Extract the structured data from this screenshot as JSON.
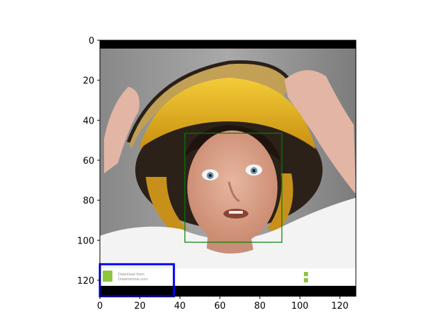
{
  "axes": {
    "x_ticks": [
      0,
      20,
      40,
      60,
      80,
      100,
      120
    ],
    "y_ticks": [
      0,
      20,
      40,
      60,
      80,
      100,
      120
    ],
    "x_range": [
      0,
      128
    ],
    "y_range": [
      128,
      0
    ]
  },
  "image": {
    "description_tags": [
      "child",
      "yellow-helmet",
      "white-shirt",
      "gray-background"
    ],
    "banner_text": [
      "Download from",
      "Dreamstime.com"
    ]
  },
  "overlays": [
    {
      "name": "face-box",
      "color": "#008000",
      "x0": 42.5,
      "y0": 46.5,
      "x1": 91,
      "y1": 101
    },
    {
      "name": "watermark-box",
      "color": "#0000ff",
      "x0": 0,
      "y0": 112,
      "x1": 37,
      "y1": 128
    }
  ],
  "colors": {
    "helmet": "#e9b51c",
    "helmet_dark": "#2a1f18",
    "skin": "#d8a38b",
    "shirt": "#f3f3f3",
    "bg_dark": "#6b6b6b",
    "bg_light": "#bdbdbd"
  }
}
